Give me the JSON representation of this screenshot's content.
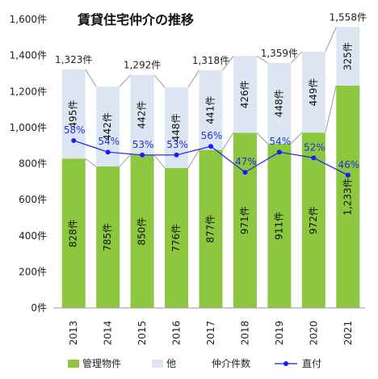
{
  "chart_data": {
    "type": "bar",
    "stacked": true,
    "title": "賃貸住宅仲介の推移",
    "categories": [
      "2013",
      "2014",
      "2015",
      "2016",
      "2017",
      "2018",
      "2019",
      "2020",
      "2021"
    ],
    "ylim": [
      0,
      1600
    ],
    "ytick_labels": [
      "0件",
      "200件",
      "400件",
      "600件",
      "800件",
      "1,000件",
      "1,200件",
      "1,400件",
      "1,600件"
    ],
    "series": [
      {
        "name": "管理物件",
        "values": [
          828,
          785,
          850,
          776,
          877,
          971,
          911,
          972,
          1233
        ],
        "labels": [
          "828件",
          "785件",
          "850件",
          "776件",
          "877件",
          "971件",
          "911件",
          "972件",
          "1,233件"
        ],
        "color": "#8dc63f"
      },
      {
        "name": "他",
        "values": [
          495,
          442,
          442,
          448,
          441,
          426,
          448,
          449,
          325
        ],
        "labels": [
          "495件",
          "442件",
          "442件",
          "448件",
          "441件",
          "426件",
          "448件",
          "449件",
          "325件"
        ],
        "color": "#dce6f2"
      }
    ],
    "totals": [
      1323,
      1227,
      1292,
      1224,
      1318,
      1397,
      1359,
      1421,
      1558
    ],
    "total_labels": [
      "1,323件",
      "",
      "1,292件",
      "",
      "1,318件",
      "",
      "1,359件",
      "",
      "1,558件"
    ],
    "line": {
      "name": "直付",
      "values_percent": [
        58,
        54,
        53,
        53,
        56,
        47,
        54,
        52,
        46
      ],
      "labels": [
        "58%",
        "54%",
        "53%",
        "53%",
        "56%",
        "47%",
        "54%",
        "52%",
        "46%"
      ],
      "color": "#1a1aff"
    },
    "legend": {
      "position": "bottom",
      "items": [
        "管理物件",
        "他",
        "仲介件数",
        "直付"
      ]
    },
    "grid": false
  }
}
